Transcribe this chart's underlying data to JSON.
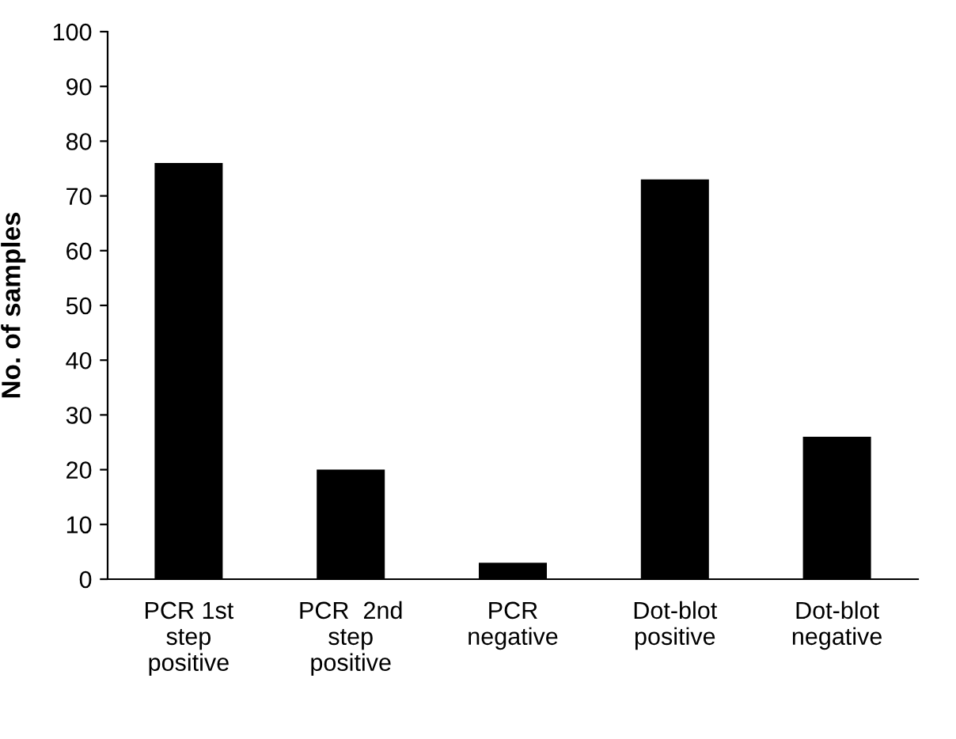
{
  "chart_data": {
    "type": "bar",
    "ylabel": "No. of samples",
    "categories": [
      "PCR 1st\nstep\npositive",
      "PCR  2nd\nstep\npositive",
      "PCR\nnegative",
      "Dot-blot\npositive",
      "Dot-blot\nnegative"
    ],
    "values": [
      76,
      20,
      3,
      73,
      26
    ],
    "color": "#000000",
    "ylim": [
      0,
      100
    ],
    "yticks": [
      0,
      10,
      20,
      30,
      40,
      50,
      60,
      70,
      80,
      90,
      100
    ],
    "grid": false,
    "legend": false
  }
}
